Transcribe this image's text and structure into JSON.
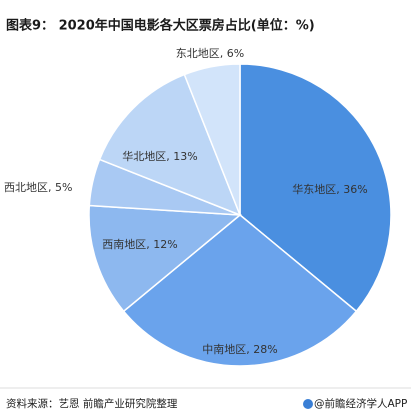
{
  "chart_data": {
    "type": "pie",
    "title": "图表9： 2020年中国电影各大区票房占比(单位：%)",
    "labels": [
      "华东地区, 36%",
      "中南地区, 28%",
      "西南地区, 12%",
      "西北地区, 5%",
      "华北地区, 13%",
      "东北地区, 6%"
    ],
    "values": [
      36,
      28,
      12,
      5,
      13,
      6
    ],
    "colors": [
      "#4a8fe0",
      "#6aa3ec",
      "#8db8ef",
      "#a9c9f3",
      "#bcd6f6",
      "#d2e4fa"
    ],
    "source": "资料来源：艺恩 前瞻产业研究院整理",
    "brand": "@前瞻经济学人APP"
  }
}
